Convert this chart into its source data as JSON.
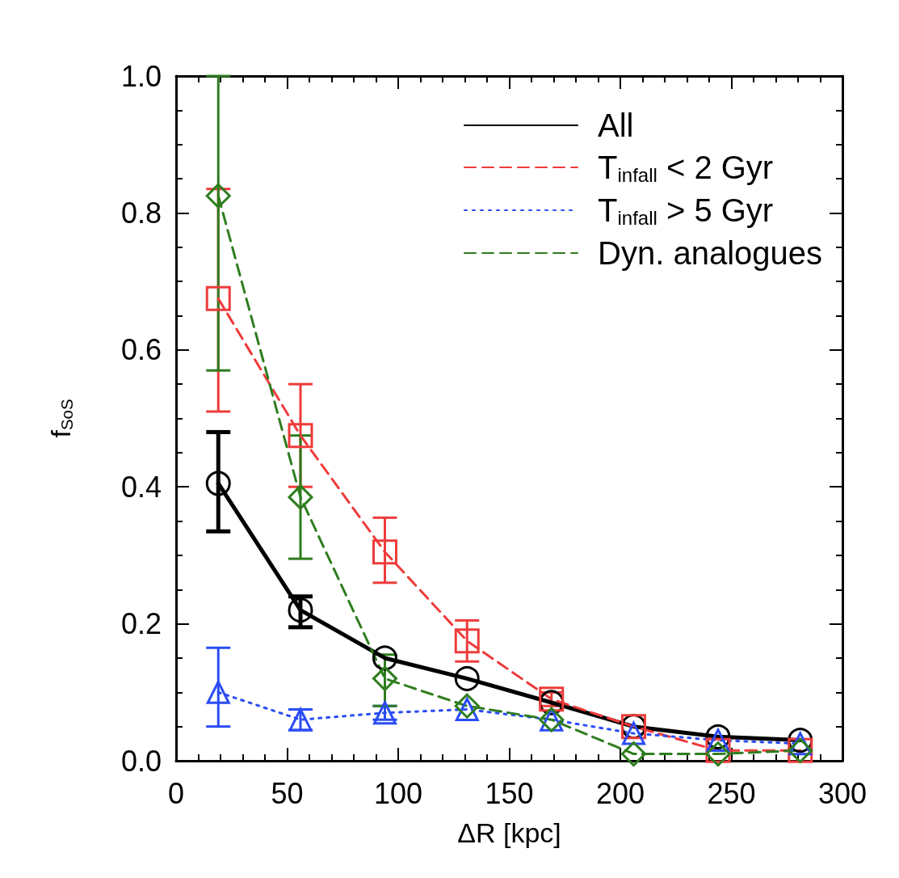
{
  "chart_data": {
    "type": "line",
    "xlabel": "ΔR [kpc]",
    "ylabel": "f$_{SoS}$",
    "xlim": [
      0,
      300
    ],
    "xticks": [
      0,
      50,
      100,
      150,
      200,
      250,
      300
    ],
    "ylim": [
      0,
      1
    ],
    "yticks": [
      {
        "value": 0,
        "label": "0.0"
      },
      0.2,
      0.4,
      0.6,
      0.8,
      {
        "value": 1,
        "label": "1.0"
      }
    ],
    "x": [
      19,
      56,
      94,
      131,
      169,
      206,
      244,
      281
    ],
    "legend": "top right",
    "grid": false,
    "series": [
      {
        "name": "All",
        "color": "#000000",
        "marker": "circle",
        "line_style": "solid",
        "values": [
          0.405,
          0.22,
          0.15,
          0.12,
          0.085,
          0.05,
          0.035,
          0.03
        ],
        "errors": [
          [
            0.335,
            0.48
          ],
          [
            0.195,
            0.24
          ],
          null,
          null,
          null,
          null,
          null,
          null
        ]
      },
      {
        "name": "T$_{infall}$ < 2 Gyr",
        "color": "#ee3b3b",
        "marker": "square",
        "line_style": "dashed",
        "values": [
          0.675,
          0.475,
          0.305,
          0.175,
          0.09,
          0.05,
          0.015,
          0.015
        ],
        "errors": [
          [
            0.51,
            0.835
          ],
          [
            0.4,
            0.55
          ],
          [
            0.26,
            0.355
          ],
          [
            0.145,
            0.205
          ],
          [
            0.08,
            0.1
          ],
          null,
          null,
          null
        ]
      },
      {
        "name": "T$_{infall}$ > 5 Gyr",
        "color": "#2a4cf5",
        "marker": "triangle",
        "line_style": "dotted",
        "values": [
          0.1,
          0.06,
          0.07,
          0.075,
          0.06,
          0.04,
          0.03,
          0.025
        ],
        "errors": [
          [
            0.05,
            0.165
          ],
          [
            0.045,
            0.075
          ],
          [
            0.06,
            0.08
          ],
          null,
          null,
          null,
          null,
          null
        ]
      },
      {
        "name": "Dyn. analogues",
        "color": "#2e7d1e",
        "marker": "diamond",
        "line_style": "dashed",
        "values": [
          0.825,
          0.385,
          0.12,
          0.08,
          0.06,
          0.01,
          0.01,
          0.015
        ],
        "errors": [
          [
            0.57,
            1.0
          ],
          [
            0.295,
            0.475
          ],
          [
            0.08,
            0.155
          ],
          null,
          null,
          null,
          null,
          null
        ]
      }
    ]
  }
}
